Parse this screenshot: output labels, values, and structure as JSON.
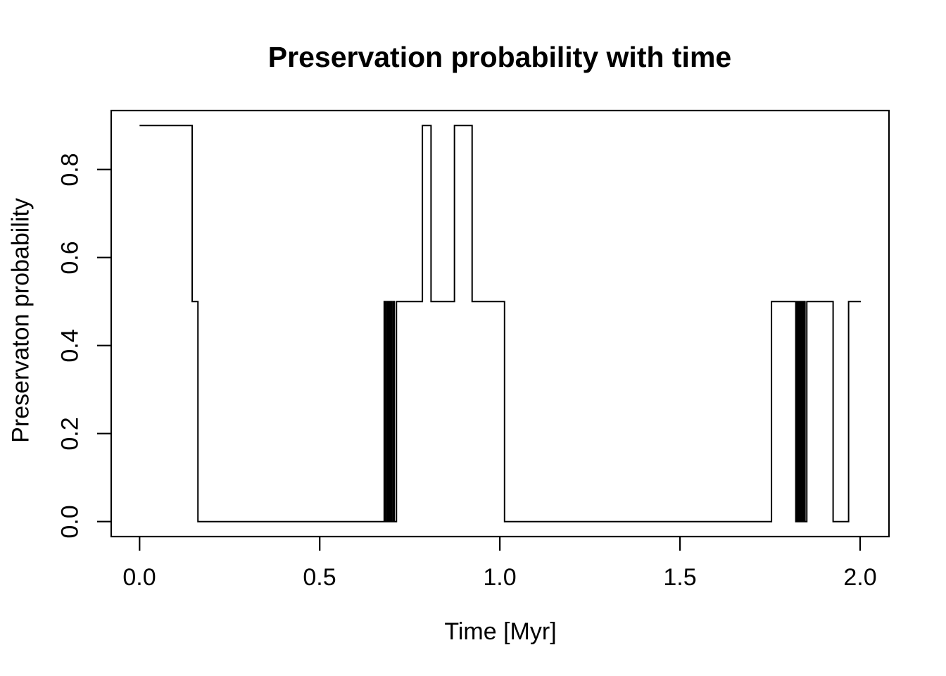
{
  "title": "Preservation probability with time",
  "x_axis": {
    "label": "Time [Myr]",
    "tick_labels": [
      "0.0",
      "0.5",
      "1.0",
      "1.5",
      "2.0"
    ],
    "tick_values": [
      0,
      0.5,
      1.0,
      1.5,
      2.0
    ]
  },
  "y_axis": {
    "label": "Preservaton probability",
    "tick_labels": [
      "0.0",
      "0.2",
      "0.4",
      "0.6",
      "0.8"
    ],
    "tick_values": [
      0,
      0.2,
      0.4,
      0.6,
      0.8
    ]
  },
  "chart_data": {
    "type": "line",
    "style": "step",
    "title": "Preservation probability with time",
    "xlabel": "Time [Myr]",
    "ylabel": "Preservaton probability",
    "xlim": [
      -0.078,
      2.064
    ],
    "ylim": [
      -0.034,
      0.934
    ],
    "grid": false,
    "legend_position": null,
    "line_color": "#000000",
    "background_color": "#ffffff",
    "levels_used": [
      0.0,
      0.5,
      0.9
    ],
    "steps": [
      [
        0.0,
        0.9
      ],
      [
        0.146,
        0.5
      ],
      [
        0.162,
        0.0
      ],
      [
        0.679,
        0.5
      ],
      [
        0.682,
        0.0
      ],
      [
        0.686,
        0.5
      ],
      [
        0.689,
        0.0
      ],
      [
        0.692,
        0.5
      ],
      [
        0.695,
        0.0
      ],
      [
        0.697,
        0.5
      ],
      [
        0.7,
        0.0
      ],
      [
        0.704,
        0.5
      ],
      [
        0.707,
        0.0
      ],
      [
        0.713,
        0.5
      ],
      [
        0.785,
        0.9
      ],
      [
        0.809,
        0.5
      ],
      [
        0.874,
        0.9
      ],
      [
        0.923,
        0.5
      ],
      [
        1.013,
        0.0
      ],
      [
        1.754,
        0.5
      ],
      [
        1.8215,
        0.0
      ],
      [
        1.8232,
        0.5
      ],
      [
        1.825,
        0.0
      ],
      [
        1.8267,
        0.5
      ],
      [
        1.8285,
        0.0
      ],
      [
        1.8302,
        0.5
      ],
      [
        1.832,
        0.0
      ],
      [
        1.8337,
        0.5
      ],
      [
        1.8355,
        0.0
      ],
      [
        1.8372,
        0.5
      ],
      [
        1.839,
        0.0
      ],
      [
        1.8407,
        0.5
      ],
      [
        1.8425,
        0.0
      ],
      [
        1.8445,
        0.5
      ],
      [
        1.847,
        0.0
      ],
      [
        1.852,
        0.5
      ],
      [
        1.925,
        0.0
      ],
      [
        1.968,
        0.5
      ]
    ],
    "t_end": 2.002
  }
}
